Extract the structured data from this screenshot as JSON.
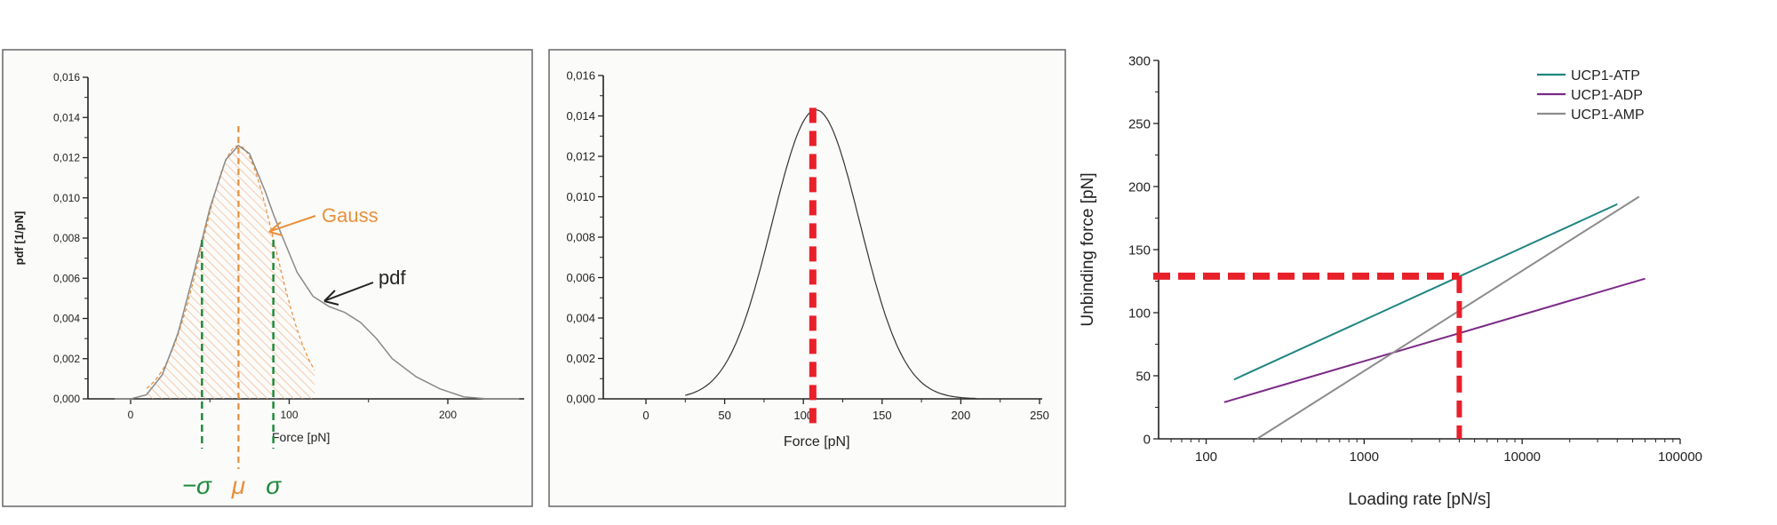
{
  "chart_data": [
    {
      "type": "line",
      "xlabel": "Force [pN]",
      "ylabel": "pdf [1/pN]",
      "xlim": [
        -15,
        245
      ],
      "ylim": [
        0,
        0.016
      ],
      "xticks": [
        0,
        100,
        200
      ],
      "xtick_labels": [
        "0",
        "100",
        "200"
      ],
      "yticks": [
        0,
        0.002,
        0.004,
        0.006,
        0.008,
        0.01,
        0.012,
        0.014,
        0.016
      ],
      "ytick_labels": [
        "0,000",
        "0,002",
        "0,004",
        "0,006",
        "0,008",
        "0,010",
        "0,012",
        "0,014",
        "0,016"
      ],
      "grid": false,
      "series": [
        {
          "name": "pdf",
          "color": "#8a8a8a",
          "points": [
            [
              -10,
              0
            ],
            [
              0,
              0
            ],
            [
              10,
              0.0002
            ],
            [
              20,
              0.0012
            ],
            [
              30,
              0.0033
            ],
            [
              40,
              0.0063
            ],
            [
              50,
              0.0095
            ],
            [
              60,
              0.0119
            ],
            [
              68,
              0.0126
            ],
            [
              75,
              0.0122
            ],
            [
              85,
              0.0103
            ],
            [
              90,
              0.0092
            ],
            [
              95,
              0.0082
            ],
            [
              105,
              0.0063
            ],
            [
              115,
              0.0051
            ],
            [
              125,
              0.0046
            ],
            [
              135,
              0.0043
            ],
            [
              145,
              0.0038
            ],
            [
              155,
              0.003
            ],
            [
              165,
              0.002
            ],
            [
              180,
              0.0011
            ],
            [
              195,
              0.0005
            ],
            [
              210,
              0.0001
            ],
            [
              225,
              0
            ],
            [
              245,
              0
            ]
          ]
        },
        {
          "name": "Gauss",
          "color": "#e8903a",
          "mean": 68,
          "sigma": 23,
          "peak": 0.0126,
          "range": [
            10,
            116
          ]
        }
      ],
      "markers": {
        "mu": 68,
        "minus_sigma": 45,
        "plus_sigma": 90
      },
      "annotations": {
        "gauss": "Gauss",
        "pdf": "pdf",
        "minus_sigma": "−σ",
        "mu": "μ",
        "sigma": "σ"
      },
      "colors": {
        "gauss": "#e8903a",
        "sigma": "#1e8a3c",
        "pdf_arrow": "#222222"
      }
    },
    {
      "type": "line",
      "xlabel": "Force [pN]",
      "xlim": [
        -25,
        250
      ],
      "ylim": [
        0,
        0.016
      ],
      "xticks": [
        0,
        50,
        100,
        150,
        200,
        250
      ],
      "xtick_labels": [
        "0",
        "50",
        "100",
        "150",
        "200",
        "250"
      ],
      "yticks": [
        0,
        0.002,
        0.004,
        0.006,
        0.008,
        0.01,
        0.012,
        0.014,
        0.016
      ],
      "ytick_labels": [
        "0,000",
        "0,002",
        "0,004",
        "0,006",
        "0,008",
        "0,010",
        "0,012",
        "0,014",
        "0,016"
      ],
      "grid": false,
      "series": [
        {
          "color": "#333333",
          "mean": 108,
          "sigma": 28,
          "peak": 0.0143,
          "range": [
            25,
            210
          ]
        }
      ],
      "marker_line": {
        "x": 106,
        "color": "#e8202a"
      }
    },
    {
      "type": "line",
      "xlabel": "Loading rate [pN/s]",
      "ylabel": "Unbinding force [pN]",
      "xscale": "log",
      "xlim": [
        50,
        100000
      ],
      "ylim": [
        0,
        300
      ],
      "xticks": [
        100,
        1000,
        10000,
        100000
      ],
      "xtick_labels": [
        "100",
        "1000",
        "10000",
        "100000"
      ],
      "yticks": [
        0,
        50,
        100,
        150,
        200,
        250,
        300
      ],
      "ytick_labels": [
        "0",
        "50",
        "100",
        "150",
        "200",
        "250",
        "300"
      ],
      "grid": false,
      "legend": "top-right",
      "series": [
        {
          "name": "UCP1-ATP",
          "color": "#1f8580",
          "x": [
            150,
            40000
          ],
          "y": [
            47,
            186
          ]
        },
        {
          "name": "UCP1-ADP",
          "color": "#7b2a86",
          "x": [
            130,
            60000
          ],
          "y": [
            29,
            127
          ]
        },
        {
          "name": "UCP1-AMP",
          "color": "#8c8c8c",
          "x": [
            210,
            55000
          ],
          "y": [
            0,
            192
          ]
        }
      ],
      "marker_point": {
        "x": 4000,
        "y": 129,
        "color": "#e8202a"
      }
    }
  ]
}
